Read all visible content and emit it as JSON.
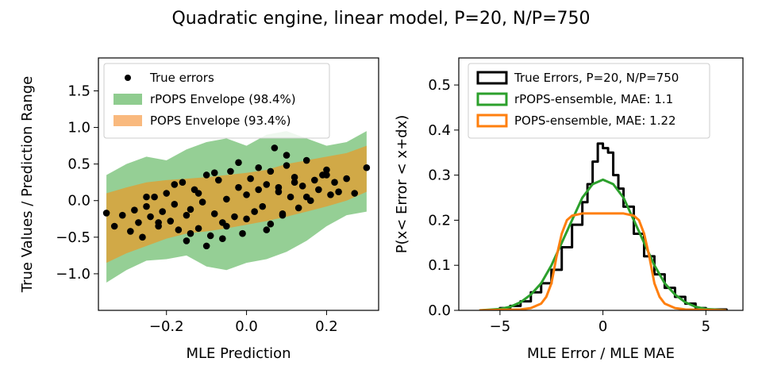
{
  "figure": {
    "title": "Quadratic engine, linear model, P=20, N/P=750"
  },
  "chart_data": [
    {
      "type": "scatter",
      "xlabel": "MLE Prediction",
      "ylabel": "True Values / Prediction Range",
      "xlim": [
        -0.37,
        0.33
      ],
      "ylim": [
        -1.5,
        1.95
      ],
      "xticks": [
        -0.2,
        0.0,
        0.2
      ],
      "xtick_labels": [
        "−0.2",
        "0.0",
        "0.2"
      ],
      "yticks": [
        -1.0,
        -0.5,
        0.0,
        0.5,
        1.0,
        1.5
      ],
      "ytick_labels": [
        "−1.0",
        "−0.5",
        "0.0",
        "0.5",
        "1.0",
        "1.5"
      ],
      "grid": false,
      "legend_position": "upper-left",
      "legend": [
        {
          "label": "True errors",
          "kind": "marker",
          "color": "#000000"
        },
        {
          "label": "rPOPS Envelope (98.4%)",
          "kind": "patch",
          "color": "#8fcc8f"
        },
        {
          "label": "POPS Envelope (93.4%)",
          "kind": "patch",
          "color": "#f9b97e"
        }
      ],
      "rpops_envelope": {
        "x": [
          -0.35,
          -0.3,
          -0.25,
          -0.2,
          -0.15,
          -0.1,
          -0.05,
          0.0,
          0.05,
          0.1,
          0.15,
          0.2,
          0.25,
          0.3
        ],
        "upper": [
          0.35,
          0.5,
          0.6,
          0.55,
          0.7,
          0.8,
          0.85,
          0.75,
          0.9,
          0.95,
          0.85,
          0.75,
          0.8,
          0.95
        ],
        "lower": [
          -1.12,
          -0.95,
          -0.82,
          -0.8,
          -0.75,
          -0.9,
          -0.95,
          -0.85,
          -0.8,
          -0.7,
          -0.55,
          -0.35,
          -0.2,
          -0.15
        ]
      },
      "pops_envelope": {
        "x": [
          -0.35,
          -0.3,
          -0.25,
          -0.2,
          -0.15,
          -0.1,
          -0.05,
          0.0,
          0.05,
          0.1,
          0.15,
          0.2,
          0.25,
          0.3
        ],
        "upper": [
          0.1,
          0.18,
          0.25,
          0.28,
          0.3,
          0.32,
          0.35,
          0.38,
          0.42,
          0.5,
          0.55,
          0.6,
          0.65,
          0.75
        ],
        "lower": [
          -0.85,
          -0.72,
          -0.62,
          -0.52,
          -0.45,
          -0.42,
          -0.38,
          -0.33,
          -0.28,
          -0.22,
          -0.15,
          -0.08,
          0.0,
          0.12
        ]
      },
      "points": {
        "x": [
          -0.35,
          -0.33,
          -0.31,
          -0.29,
          -0.28,
          -0.27,
          -0.26,
          -0.25,
          -0.24,
          -0.23,
          -0.22,
          -0.21,
          -0.2,
          -0.19,
          -0.18,
          -0.17,
          -0.16,
          -0.15,
          -0.14,
          -0.13,
          -0.12,
          -0.11,
          -0.1,
          -0.09,
          -0.08,
          -0.07,
          -0.06,
          -0.05,
          -0.04,
          -0.03,
          -0.02,
          -0.01,
          0.0,
          0.01,
          0.02,
          0.03,
          0.04,
          0.05,
          0.06,
          0.07,
          0.08,
          0.09,
          0.1,
          0.11,
          0.12,
          0.13,
          0.14,
          0.15,
          0.16,
          0.17,
          0.18,
          0.19,
          0.2,
          0.21,
          0.22,
          0.23,
          0.25,
          0.27,
          0.3,
          -0.22,
          -0.15,
          -0.12,
          -0.1,
          -0.08,
          -0.05,
          -0.02,
          0.0,
          0.03,
          0.06,
          0.09,
          0.12,
          0.15,
          0.05,
          -0.18,
          -0.06,
          0.1,
          -0.25,
          0.2,
          -0.14,
          0.08
        ],
        "y": [
          -0.17,
          -0.35,
          -0.2,
          -0.42,
          -0.13,
          -0.3,
          -0.5,
          -0.08,
          -0.22,
          0.05,
          -0.35,
          -0.15,
          0.1,
          -0.28,
          -0.05,
          -0.4,
          0.25,
          -0.55,
          -0.12,
          0.15,
          -0.38,
          -0.02,
          0.35,
          -0.48,
          -0.18,
          0.28,
          -0.3,
          0.02,
          0.4,
          -0.22,
          0.18,
          -0.45,
          0.08,
          0.3,
          -0.15,
          0.45,
          -0.08,
          0.22,
          -0.32,
          0.72,
          0.12,
          -0.2,
          0.48,
          0.05,
          0.32,
          -0.1,
          0.2,
          0.55,
          0.0,
          0.28,
          0.15,
          0.35,
          0.42,
          0.08,
          0.25,
          0.12,
          0.3,
          0.1,
          0.45,
          -0.3,
          -0.2,
          0.1,
          -0.62,
          0.38,
          -0.35,
          0.52,
          -0.25,
          0.15,
          0.4,
          -0.18,
          0.25,
          0.05,
          -0.4,
          0.22,
          -0.52,
          0.62,
          0.05,
          0.35,
          -0.45,
          0.18
        ]
      }
    },
    {
      "type": "line",
      "xlabel": "MLE Error / MLE MAE",
      "ylabel": "P(x< Error < x+dx)",
      "xlim": [
        -7.0,
        6.8
      ],
      "ylim": [
        0.0,
        0.56
      ],
      "xticks": [
        -5,
        0,
        5
      ],
      "xtick_labels": [
        "−5",
        "0",
        "5"
      ],
      "yticks": [
        0.0,
        0.1,
        0.2,
        0.3,
        0.4,
        0.5
      ],
      "ytick_labels": [
        "0.0",
        "0.1",
        "0.2",
        "0.3",
        "0.4",
        "0.5"
      ],
      "grid": false,
      "legend_position": "upper-right",
      "series": [
        {
          "name": "True Errors, P=20, N/P=750",
          "color": "#000000",
          "step": true,
          "x": [
            -6,
            -5,
            -4.5,
            -4,
            -3.5,
            -3,
            -2.5,
            -2,
            -1.5,
            -1,
            -0.75,
            -0.5,
            -0.25,
            0,
            0.25,
            0.5,
            0.75,
            1,
            1.5,
            2,
            2.5,
            3,
            3.5,
            4,
            4.5,
            5,
            6
          ],
          "y": [
            0.0,
            0.005,
            0.01,
            0.02,
            0.04,
            0.06,
            0.09,
            0.14,
            0.19,
            0.24,
            0.28,
            0.33,
            0.37,
            0.36,
            0.35,
            0.3,
            0.27,
            0.23,
            0.17,
            0.12,
            0.08,
            0.05,
            0.03,
            0.015,
            0.005,
            0.002,
            0.0
          ]
        },
        {
          "name": "rPOPS-ensemble, MAE: 1.1",
          "color": "#2ca02c",
          "step": false,
          "x": [
            -6,
            -5,
            -4.5,
            -4,
            -3.5,
            -3,
            -2.5,
            -2,
            -1.5,
            -1,
            -0.5,
            0,
            0.5,
            1,
            1.5,
            2,
            2.5,
            3,
            3.5,
            4,
            4.5,
            5,
            6
          ],
          "y": [
            0.0,
            0.003,
            0.008,
            0.018,
            0.035,
            0.06,
            0.1,
            0.15,
            0.2,
            0.25,
            0.28,
            0.29,
            0.28,
            0.25,
            0.2,
            0.15,
            0.1,
            0.06,
            0.035,
            0.018,
            0.008,
            0.003,
            0.0
          ]
        },
        {
          "name": "POPS-ensemble, MAE: 1.22",
          "color": "#ff7f0e",
          "step": false,
          "x": [
            -6,
            -4,
            -3.5,
            -3,
            -2.75,
            -2.5,
            -2.25,
            -2,
            -1.75,
            -1.5,
            -1,
            -0.5,
            0,
            0.5,
            1,
            1.5,
            1.75,
            2,
            2.25,
            2.5,
            2.75,
            3,
            3.5,
            4,
            6
          ],
          "y": [
            0.0,
            0.002,
            0.005,
            0.015,
            0.03,
            0.06,
            0.12,
            0.17,
            0.2,
            0.21,
            0.215,
            0.215,
            0.215,
            0.215,
            0.215,
            0.21,
            0.2,
            0.17,
            0.12,
            0.06,
            0.03,
            0.015,
            0.005,
            0.002,
            0.0
          ]
        }
      ]
    }
  ]
}
